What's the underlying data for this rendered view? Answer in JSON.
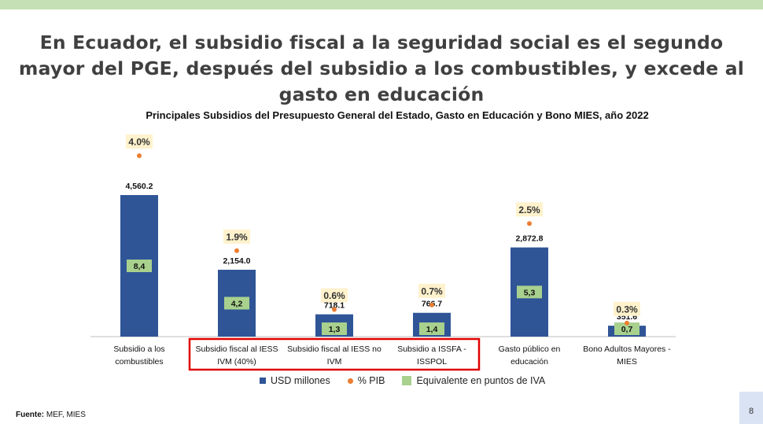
{
  "headline": "En Ecuador, el subsidio fiscal a la seguridad social es el segundo mayor del PGE, después del subsidio a los combustibles, y excede al gasto en educación",
  "source_label": "Fuente:",
  "source_text": "MEF, MIES",
  "page_number": "8",
  "colors": {
    "bar": "#2f5597",
    "dot": "#ed7d31",
    "iva_box": "#a9d18e",
    "pct_box": "#fff2cc",
    "highlight": "#e00000",
    "top_band": "#c5e0b4"
  },
  "chart_data": {
    "type": "bar",
    "title": "Principales Subsidios del Presupuesto General del Estado, Gasto en Educación y Bono MIES, año 2022",
    "categories": [
      [
        "Subsidio a los",
        "combustibles"
      ],
      [
        "Subsidio fiscal al IESS",
        "IVM (40%)"
      ],
      [
        "Subsidio fiscal al IESS no",
        "IVM"
      ],
      [
        "Subsidio a ISSFA -",
        "ISSPOL"
      ],
      [
        "Gasto público en",
        "educación"
      ],
      [
        "Bono Adultos Mayores -",
        "MIES"
      ]
    ],
    "series": [
      {
        "name": "USD millones",
        "values": [
          4560.2,
          2154.0,
          718.1,
          766.7,
          2872.8,
          351.6
        ],
        "labels": [
          "4,560.2",
          "2,154.0",
          "718.1",
          "766.7",
          "2,872.8",
          "351.6"
        ]
      },
      {
        "name": "% PIB",
        "values": [
          4.0,
          1.9,
          0.6,
          0.7,
          2.5,
          0.3
        ],
        "labels": [
          "4.0%",
          "1.9%",
          "0.6%",
          "0.7%",
          "2.5%",
          "0.3%"
        ]
      },
      {
        "name": "Equivalente en puntos de IVA",
        "values": [
          8.4,
          4.2,
          1.3,
          1.4,
          5.3,
          0.7
        ],
        "labels": [
          "8,4",
          "4,2",
          "1,3",
          "1,4",
          "5,3",
          "0,7"
        ]
      }
    ],
    "highlighted_categories": [
      1,
      2,
      3
    ],
    "legend_position": "bottom",
    "grid": false
  }
}
